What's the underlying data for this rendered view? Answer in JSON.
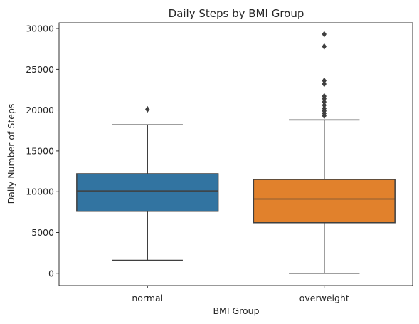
{
  "chart_data": {
    "type": "box",
    "title": "Daily Steps by BMI Group",
    "xlabel": "BMI Group",
    "ylabel": "Daily Number of Steps",
    "ylim": [
      -1500,
      30700
    ],
    "yticks": [
      0,
      5000,
      10000,
      15000,
      20000,
      25000,
      30000
    ],
    "grid": false,
    "categories": [
      "normal",
      "overweight"
    ],
    "colors": [
      "#3274a1",
      "#e1812c"
    ],
    "line_color": "#3f3f3f",
    "boxes": [
      {
        "name": "normal",
        "whisker_low": 1600,
        "q1": 7600,
        "median": 10100,
        "q3": 12200,
        "whisker_high": 18200,
        "outliers": [
          20100
        ]
      },
      {
        "name": "overweight",
        "whisker_low": 0,
        "q1": 6200,
        "median": 9100,
        "q3": 11500,
        "whisker_high": 18800,
        "outliers": [
          19300,
          19600,
          19900,
          20200,
          20600,
          21000,
          21400,
          21700,
          23200,
          23600,
          27800,
          29300
        ]
      }
    ]
  }
}
